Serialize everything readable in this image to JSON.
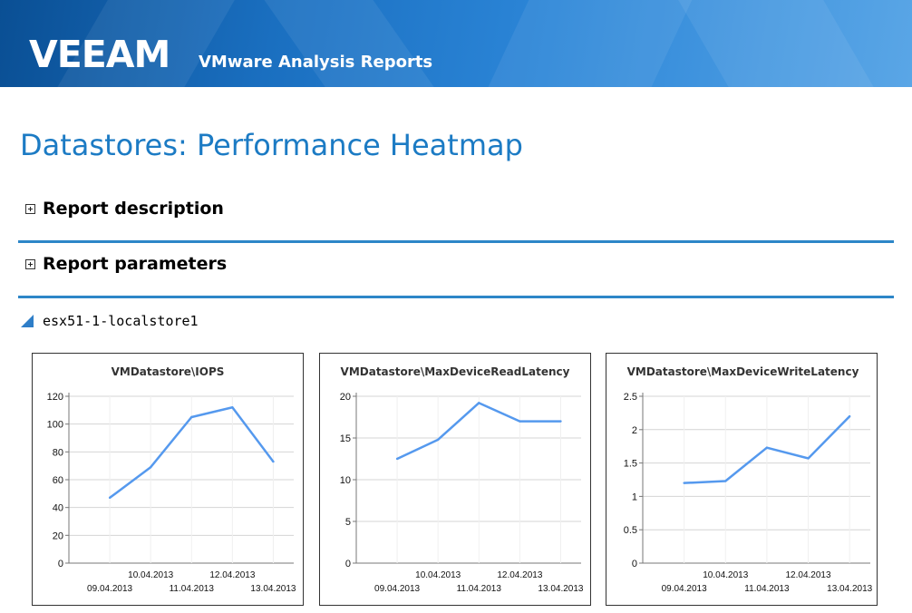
{
  "header": {
    "logo_text": "VEEAM",
    "app_title": "VMware Analysis Reports"
  },
  "page": {
    "title": "Datastores: Performance Heatmap"
  },
  "sections": [
    {
      "label": "Report description",
      "expanded": false
    },
    {
      "label": "Report parameters",
      "expanded": false
    }
  ],
  "datastore": {
    "name": "esx51-1-localstore1"
  },
  "colors": {
    "accent": "#1c7bc4",
    "divider": "#2d86c8",
    "line": "#5599ee",
    "grid": "#d4d4d4"
  },
  "chart_data": [
    {
      "type": "line",
      "title": "VMDatastore\\IOPS",
      "categories": [
        "09.04.2013",
        "10.04.2013",
        "11.04.2013",
        "12.04.2013",
        "13.04.2013"
      ],
      "values": [
        47,
        69,
        105,
        112,
        73
      ],
      "ylim": [
        0,
        120
      ],
      "yticks": [
        0,
        20,
        40,
        60,
        80,
        100,
        120
      ],
      "ytick_labels": [
        "0",
        "20",
        "40",
        "60",
        "80",
        "100",
        "120"
      ],
      "grid": true
    },
    {
      "type": "line",
      "title": "VMDatastore\\MaxDeviceReadLatency",
      "categories": [
        "09.04.2013",
        "10.04.2013",
        "11.04.2013",
        "12.04.2013",
        "13.04.2013"
      ],
      "values": [
        12.5,
        14.8,
        19.2,
        17,
        17
      ],
      "ylim": [
        0,
        20
      ],
      "yticks": [
        0,
        5,
        10,
        15,
        20
      ],
      "ytick_labels": [
        "0",
        "5",
        "10",
        "15",
        "20"
      ],
      "grid": true
    },
    {
      "type": "line",
      "title": "VMDatastore\\MaxDeviceWriteLatency",
      "categories": [
        "09.04.2013",
        "10.04.2013",
        "11.04.2013",
        "12.04.2013",
        "13.04.2013"
      ],
      "values": [
        1.2,
        1.23,
        1.73,
        1.57,
        2.2
      ],
      "ylim": [
        0,
        2.5
      ],
      "yticks": [
        0,
        0.5,
        1,
        1.5,
        2,
        2.5
      ],
      "ytick_labels": [
        "0",
        "0.5",
        "1",
        "1.5",
        "2",
        "2.5"
      ],
      "grid": true
    }
  ]
}
